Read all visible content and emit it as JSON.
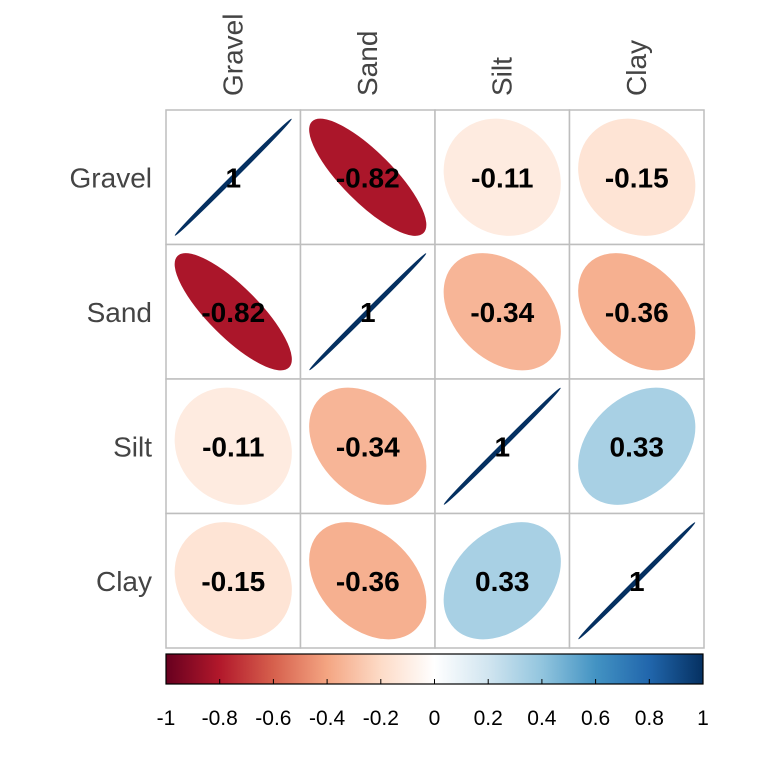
{
  "chart_data": {
    "type": "heatmap",
    "method": "ellipse",
    "variables": [
      "Gravel",
      "Sand",
      "Silt",
      "Clay"
    ],
    "matrix": [
      [
        1,
        -0.82,
        -0.11,
        -0.15
      ],
      [
        -0.82,
        1,
        -0.34,
        -0.36
      ],
      [
        -0.11,
        -0.34,
        1,
        0.33
      ],
      [
        -0.15,
        -0.36,
        0.33,
        1
      ]
    ],
    "labels": [
      [
        "1",
        "-0.82",
        "-0.11",
        "-0.15"
      ],
      [
        "-0.82",
        "1",
        "-0.34",
        "-0.36"
      ],
      [
        "-0.11",
        "-0.34",
        "1",
        "0.33"
      ],
      [
        "-0.15",
        "-0.36",
        "0.33",
        "1"
      ]
    ],
    "colorbar": {
      "range": [
        -1,
        1
      ],
      "ticks": [
        -1,
        -0.8,
        -0.6,
        -0.4,
        -0.2,
        0,
        0.2,
        0.4,
        0.6,
        0.8,
        1
      ],
      "tick_labels": [
        "-1",
        "-0.8",
        "-0.6",
        "-0.4",
        "-0.2",
        "0",
        "0.2",
        "0.4",
        "0.6",
        "0.8",
        "1"
      ],
      "placement": "bottom",
      "colors": [
        "#67001f",
        "#b2182b",
        "#d6604d",
        "#f4a582",
        "#fddbc7",
        "#ffffff",
        "#d1e5f0",
        "#92c5de",
        "#4393c3",
        "#2166ac",
        "#053061"
      ]
    },
    "grid": true
  }
}
